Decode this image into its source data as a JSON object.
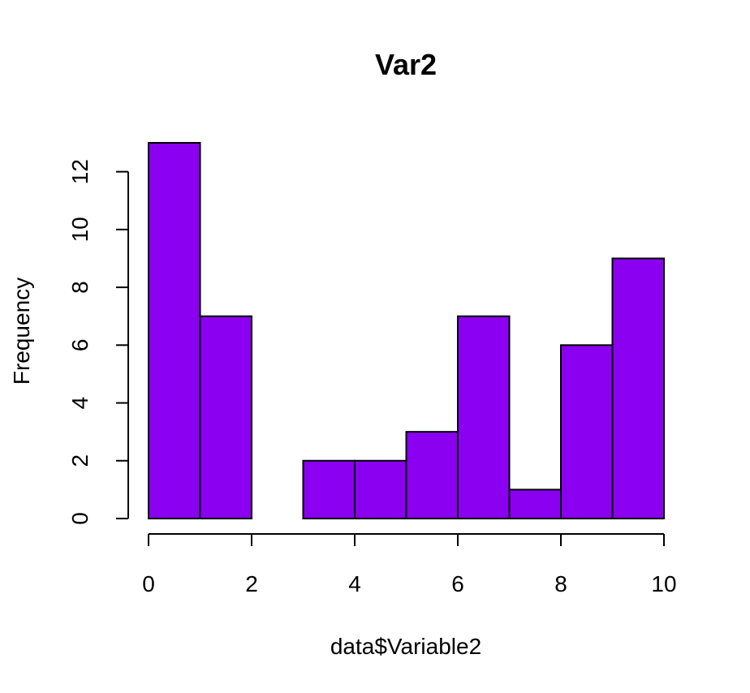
{
  "chart_data": {
    "type": "bar",
    "title": "Var2",
    "xlabel": "data$Variable2",
    "ylabel": "Frequency",
    "bins": [
      {
        "x0": 0,
        "x1": 1,
        "count": 13
      },
      {
        "x0": 1,
        "x1": 2,
        "count": 7
      },
      {
        "x0": 2,
        "x1": 3,
        "count": 0
      },
      {
        "x0": 3,
        "x1": 4,
        "count": 2
      },
      {
        "x0": 4,
        "x1": 5,
        "count": 2
      },
      {
        "x0": 5,
        "x1": 6,
        "count": 3
      },
      {
        "x0": 6,
        "x1": 7,
        "count": 7
      },
      {
        "x0": 7,
        "x1": 8,
        "count": 1
      },
      {
        "x0": 8,
        "x1": 9,
        "count": 6
      },
      {
        "x0": 9,
        "x1": 10,
        "count": 9
      }
    ],
    "xlim": [
      0,
      10
    ],
    "ylim": [
      0,
      13
    ],
    "xticks": [
      0,
      2,
      4,
      6,
      8,
      10
    ],
    "yticks": [
      0,
      2,
      4,
      6,
      8,
      10,
      12
    ],
    "bar_color": "#8B00F0",
    "edge_color": "#000000",
    "grid": false
  }
}
